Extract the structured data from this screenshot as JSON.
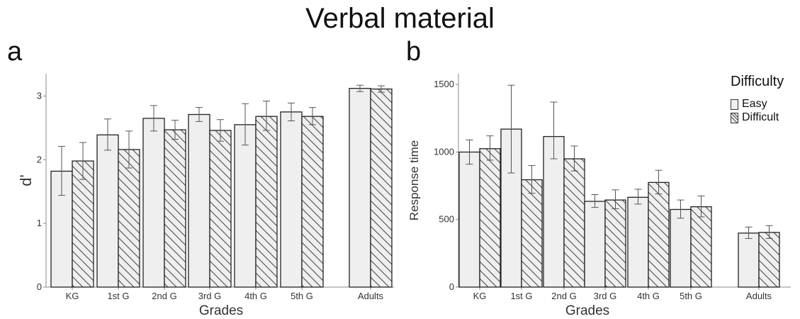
{
  "title": "Verbal material",
  "panels": {
    "a": "a",
    "b": "b"
  },
  "legend": {
    "title": "Difficulty",
    "items": [
      "Easy",
      "Difficult"
    ]
  },
  "colors": {
    "bar_fill": "#efefef",
    "bar_stroke": "#222222",
    "hatch": "#444444",
    "axis": "#888888",
    "error": "#555555"
  },
  "chart_data": [
    {
      "type": "bar",
      "panel": "a",
      "categories": [
        "KG",
        "1st G",
        "2nd G",
        "3rd G",
        "4th G",
        "5th G",
        "Adults"
      ],
      "series": [
        {
          "name": "Easy",
          "values": [
            1.82,
            2.39,
            2.65,
            2.71,
            2.55,
            2.75,
            3.12
          ],
          "err_low": [
            1.44,
            2.15,
            2.45,
            2.6,
            2.23,
            2.61,
            3.07
          ],
          "err_high": [
            2.21,
            2.64,
            2.85,
            2.82,
            2.88,
            2.89,
            3.17
          ]
        },
        {
          "name": "Difficult",
          "values": [
            1.98,
            2.16,
            2.47,
            2.46,
            2.68,
            2.68,
            3.11
          ],
          "err_low": [
            1.69,
            1.87,
            2.32,
            2.29,
            2.46,
            2.55,
            3.06
          ],
          "err_high": [
            2.27,
            2.45,
            2.62,
            2.63,
            2.92,
            2.82,
            3.16
          ]
        }
      ],
      "xlabel": "Grades",
      "ylabel": "d'",
      "ylim": [
        0,
        3.35
      ],
      "yticks": [
        0,
        1,
        2,
        3
      ],
      "grid": false
    },
    {
      "type": "bar",
      "panel": "b",
      "categories": [
        "KG",
        "1st G",
        "2nd G",
        "3rd G",
        "4th G",
        "5th G",
        "Adults"
      ],
      "series": [
        {
          "name": "Easy",
          "values": [
            1000,
            1170,
            1115,
            635,
            665,
            575,
            400
          ],
          "err_low": [
            910,
            845,
            950,
            590,
            615,
            510,
            360
          ],
          "err_high": [
            1090,
            1495,
            1370,
            685,
            725,
            645,
            445
          ]
        },
        {
          "name": "Difficult",
          "values": [
            1025,
            795,
            950,
            645,
            775,
            595,
            405
          ],
          "err_low": [
            940,
            695,
            860,
            580,
            690,
            520,
            360
          ],
          "err_high": [
            1120,
            900,
            1045,
            720,
            865,
            675,
            455
          ]
        }
      ],
      "xlabel": "Grades",
      "ylabel": "Response time",
      "ylim": [
        0,
        1580
      ],
      "yticks": [
        0,
        500,
        1000,
        1500
      ],
      "grid": false,
      "legend_position": "top-right"
    }
  ]
}
